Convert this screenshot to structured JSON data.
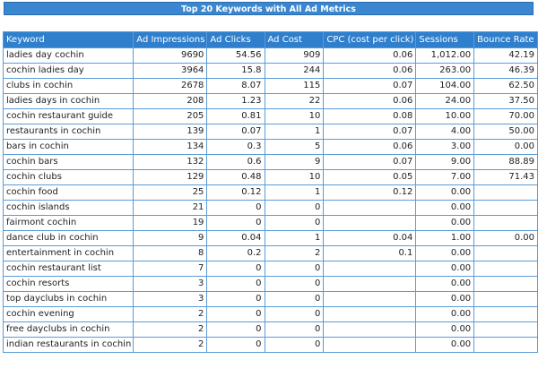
{
  "title": "Top 20 Keywords with All Ad Metrics",
  "columns": [
    "Keyword",
    "Ad Impressions",
    "Ad Clicks",
    "Ad Cost",
    "CPC (cost per click)",
    "Sessions",
    "Bounce Rate"
  ],
  "rows": [
    [
      "ladies day cochin",
      "9690",
      "54.56",
      "909",
      "0.06",
      "1,012.00",
      "42.19"
    ],
    [
      "cochin ladies day",
      "3964",
      "15.8",
      "244",
      "0.06",
      "263.00",
      "46.39"
    ],
    [
      "clubs in cochin",
      "2678",
      "8.07",
      "115",
      "0.07",
      "104.00",
      "62.50"
    ],
    [
      "ladies days in cochin",
      "208",
      "1.23",
      "22",
      "0.06",
      "24.00",
      "37.50"
    ],
    [
      "cochin restaurant guide",
      "205",
      "0.81",
      "10",
      "0.08",
      "10.00",
      "70.00"
    ],
    [
      "restaurants in cochin",
      "139",
      "0.07",
      "1",
      "0.07",
      "4.00",
      "50.00"
    ],
    [
      "bars in cochin",
      "134",
      "0.3",
      "5",
      "0.06",
      "3.00",
      "0.00"
    ],
    [
      "cochin bars",
      "132",
      "0.6",
      "9",
      "0.07",
      "9.00",
      "88.89"
    ],
    [
      "cochin clubs",
      "129",
      "0.48",
      "10",
      "0.05",
      "7.00",
      "71.43"
    ],
    [
      "cochin food",
      "25",
      "0.12",
      "1",
      "0.12",
      "0.00",
      ""
    ],
    [
      "cochin islands",
      "21",
      "0",
      "0",
      "",
      "0.00",
      ""
    ],
    [
      "fairmont cochin",
      "19",
      "0",
      "0",
      "",
      "0.00",
      ""
    ],
    [
      "dance club in cochin",
      "9",
      "0.04",
      "1",
      "0.04",
      "1.00",
      "0.00"
    ],
    [
      "entertainment in cochin",
      "8",
      "0.2",
      "2",
      "0.1",
      "0.00",
      ""
    ],
    [
      "cochin restaurant list",
      "7",
      "0",
      "0",
      "",
      "0.00",
      ""
    ],
    [
      "cochin resorts",
      "3",
      "0",
      "0",
      "",
      "0.00",
      ""
    ],
    [
      "top dayclubs in cochin",
      "3",
      "0",
      "0",
      "",
      "0.00",
      ""
    ],
    [
      "cochin evening",
      "2",
      "0",
      "0",
      "",
      "0.00",
      ""
    ],
    [
      "free dayclubs in cochin",
      "2",
      "0",
      "0",
      "",
      "0.00",
      ""
    ],
    [
      "indian restaurants in cochin",
      "2",
      "0",
      "0",
      "",
      "0.00",
      ""
    ]
  ]
}
